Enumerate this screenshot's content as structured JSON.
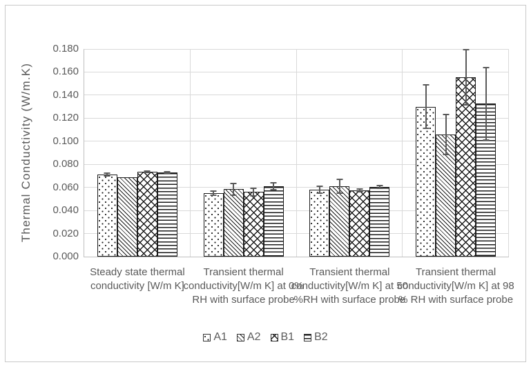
{
  "chart_data": {
    "type": "bar",
    "title": "",
    "xlabel": "",
    "ylabel": "Thermal Conductivity (W/m.K)",
    "ylim": [
      0.0,
      0.18
    ],
    "ytick_step": 0.02,
    "ytick_decimals": 3,
    "grid": true,
    "legend_position": "bottom",
    "error_bars": true,
    "categories": [
      "Steady state thermal conductivity [W/m K]",
      "Transient thermal conductivity[W/m K] at 0%  RH with surface probe",
      "Transient thermal conductivity[W/m K] at 50 %RH with surface probe",
      "Transient thermal conductivity[W/m K] at 98 % RH with surface probe"
    ],
    "series": [
      {
        "name": "A1",
        "pattern": "dots",
        "values": [
          0.071,
          0.055,
          0.058,
          0.13
        ],
        "errors": [
          0.0012,
          0.002,
          0.003,
          0.019
        ]
      },
      {
        "name": "A2",
        "pattern": "diagonal-stripes",
        "values": [
          0.069,
          0.0585,
          0.061,
          0.106
        ],
        "errors": [
          0,
          0.005,
          0.006,
          0.0175
        ]
      },
      {
        "name": "B1",
        "pattern": "diamond-crosshatch",
        "values": [
          0.0735,
          0.056,
          0.0575,
          0.1555
        ],
        "errors": [
          0.0008,
          0.0035,
          0.001,
          0.024
        ]
      },
      {
        "name": "B2",
        "pattern": "horizontal-stripes",
        "values": [
          0.073,
          0.061,
          0.0605,
          0.1325
        ],
        "errors": [
          0.0005,
          0.003,
          0.001,
          0.0315
        ]
      }
    ]
  },
  "colors": {
    "text": "#595959",
    "gridline": "#d9d9d9",
    "axis_line": "#bfbfbf",
    "bar_outline": "#1a1a1a",
    "error_bar": "#595959",
    "outer_border": "#c9c9c9",
    "background": "#ffffff"
  }
}
